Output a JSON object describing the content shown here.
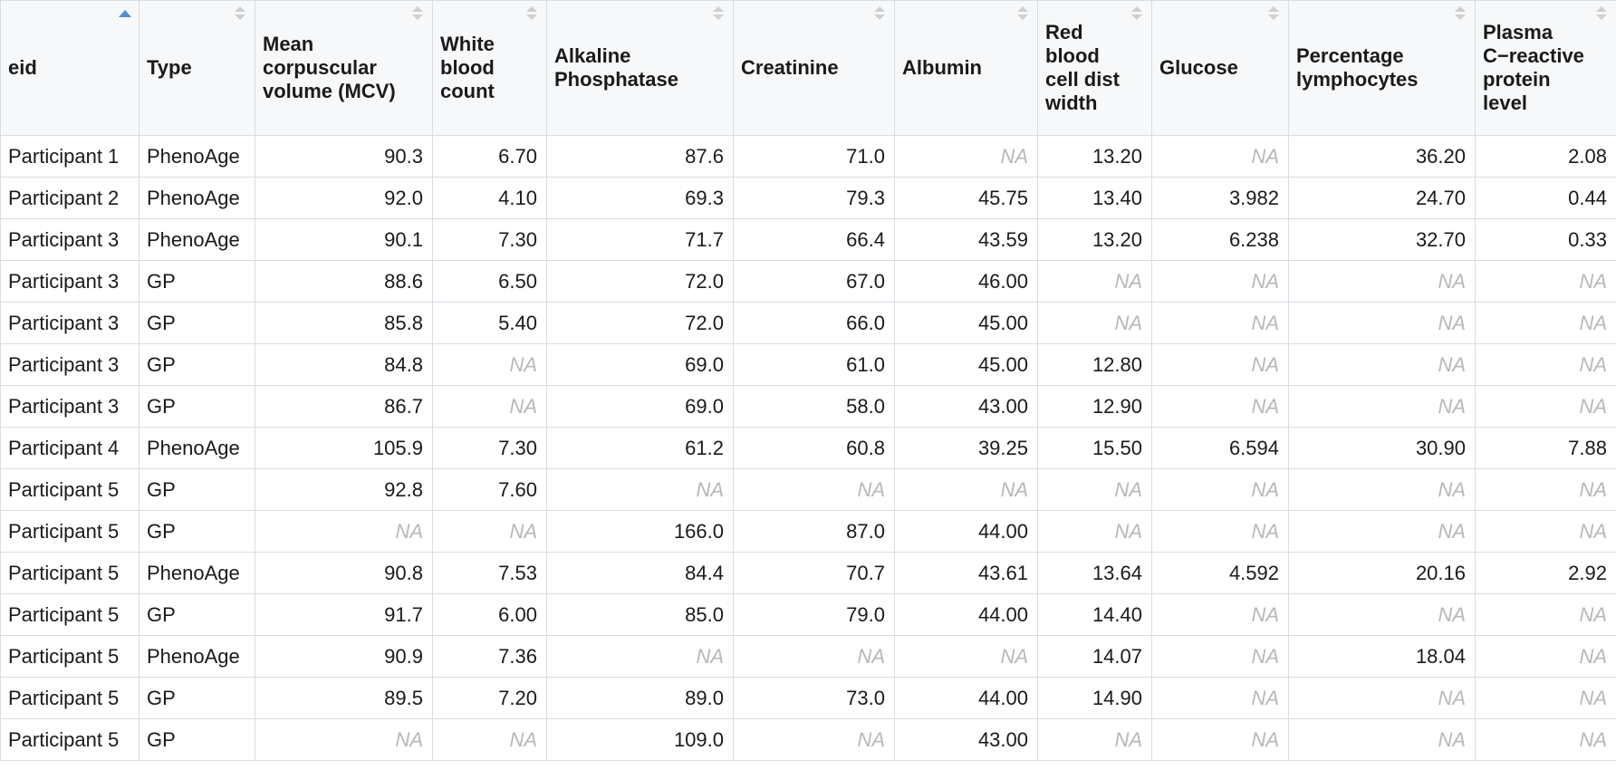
{
  "table": {
    "columns": [
      {
        "key": "eid",
        "label": "eid",
        "numeric": false,
        "sorted": "asc"
      },
      {
        "key": "type",
        "label": "Type",
        "numeric": false,
        "sorted": null
      },
      {
        "key": "mcv",
        "label": "Mean corpuscular volume (MCV)",
        "numeric": true,
        "sorted": null
      },
      {
        "key": "wbc",
        "label": "White blood count",
        "numeric": true,
        "sorted": null
      },
      {
        "key": "alp",
        "label": "Alkaline Phosphatase",
        "numeric": true,
        "sorted": null
      },
      {
        "key": "creatinine",
        "label": "Creatinine",
        "numeric": true,
        "sorted": null
      },
      {
        "key": "albumin",
        "label": "Albumin",
        "numeric": true,
        "sorted": null
      },
      {
        "key": "rdw",
        "label": "Red blood cell dist width",
        "numeric": true,
        "sorted": null
      },
      {
        "key": "glucose",
        "label": "Glucose",
        "numeric": true,
        "sorted": null
      },
      {
        "key": "lymph",
        "label": "Percentage lymphocytes",
        "numeric": true,
        "sorted": null
      },
      {
        "key": "crp",
        "label": "Plasma C−reactive protein level",
        "numeric": true,
        "sorted": null
      }
    ],
    "rows": [
      [
        "Participant 1",
        "PhenoAge",
        "90.3",
        "6.70",
        "87.6",
        "71.0",
        "NA",
        "13.20",
        "NA",
        "36.20",
        "2.08"
      ],
      [
        "Participant 2",
        "PhenoAge",
        "92.0",
        "4.10",
        "69.3",
        "79.3",
        "45.75",
        "13.40",
        "3.982",
        "24.70",
        "0.44"
      ],
      [
        "Participant 3",
        "PhenoAge",
        "90.1",
        "7.30",
        "71.7",
        "66.4",
        "43.59",
        "13.20",
        "6.238",
        "32.70",
        "0.33"
      ],
      [
        "Participant 3",
        "GP",
        "88.6",
        "6.50",
        "72.0",
        "67.0",
        "46.00",
        "NA",
        "NA",
        "NA",
        "NA"
      ],
      [
        "Participant 3",
        "GP",
        "85.8",
        "5.40",
        "72.0",
        "66.0",
        "45.00",
        "NA",
        "NA",
        "NA",
        "NA"
      ],
      [
        "Participant 3",
        "GP",
        "84.8",
        "NA",
        "69.0",
        "61.0",
        "45.00",
        "12.80",
        "NA",
        "NA",
        "NA"
      ],
      [
        "Participant 3",
        "GP",
        "86.7",
        "NA",
        "69.0",
        "58.0",
        "43.00",
        "12.90",
        "NA",
        "NA",
        "NA"
      ],
      [
        "Participant 4",
        "PhenoAge",
        "105.9",
        "7.30",
        "61.2",
        "60.8",
        "39.25",
        "15.50",
        "6.594",
        "30.90",
        "7.88"
      ],
      [
        "Participant 5",
        "GP",
        "92.8",
        "7.60",
        "NA",
        "NA",
        "NA",
        "NA",
        "NA",
        "NA",
        "NA"
      ],
      [
        "Participant 5",
        "GP",
        "NA",
        "NA",
        "166.0",
        "87.0",
        "44.00",
        "NA",
        "NA",
        "NA",
        "NA"
      ],
      [
        "Participant 5",
        "PhenoAge",
        "90.8",
        "7.53",
        "84.4",
        "70.7",
        "43.61",
        "13.64",
        "4.592",
        "20.16",
        "2.92"
      ],
      [
        "Participant 5",
        "GP",
        "91.7",
        "6.00",
        "85.0",
        "79.0",
        "44.00",
        "14.40",
        "NA",
        "NA",
        "NA"
      ],
      [
        "Participant 5",
        "PhenoAge",
        "90.9",
        "7.36",
        "NA",
        "NA",
        "NA",
        "14.07",
        "NA",
        "18.04",
        "NA"
      ],
      [
        "Participant 5",
        "GP",
        "89.5",
        "7.20",
        "89.0",
        "73.0",
        "44.00",
        "14.90",
        "NA",
        "NA",
        "NA"
      ],
      [
        "Participant 5",
        "GP",
        "NA",
        "NA",
        "109.0",
        "NA",
        "43.00",
        "NA",
        "NA",
        "NA",
        "NA"
      ]
    ]
  }
}
